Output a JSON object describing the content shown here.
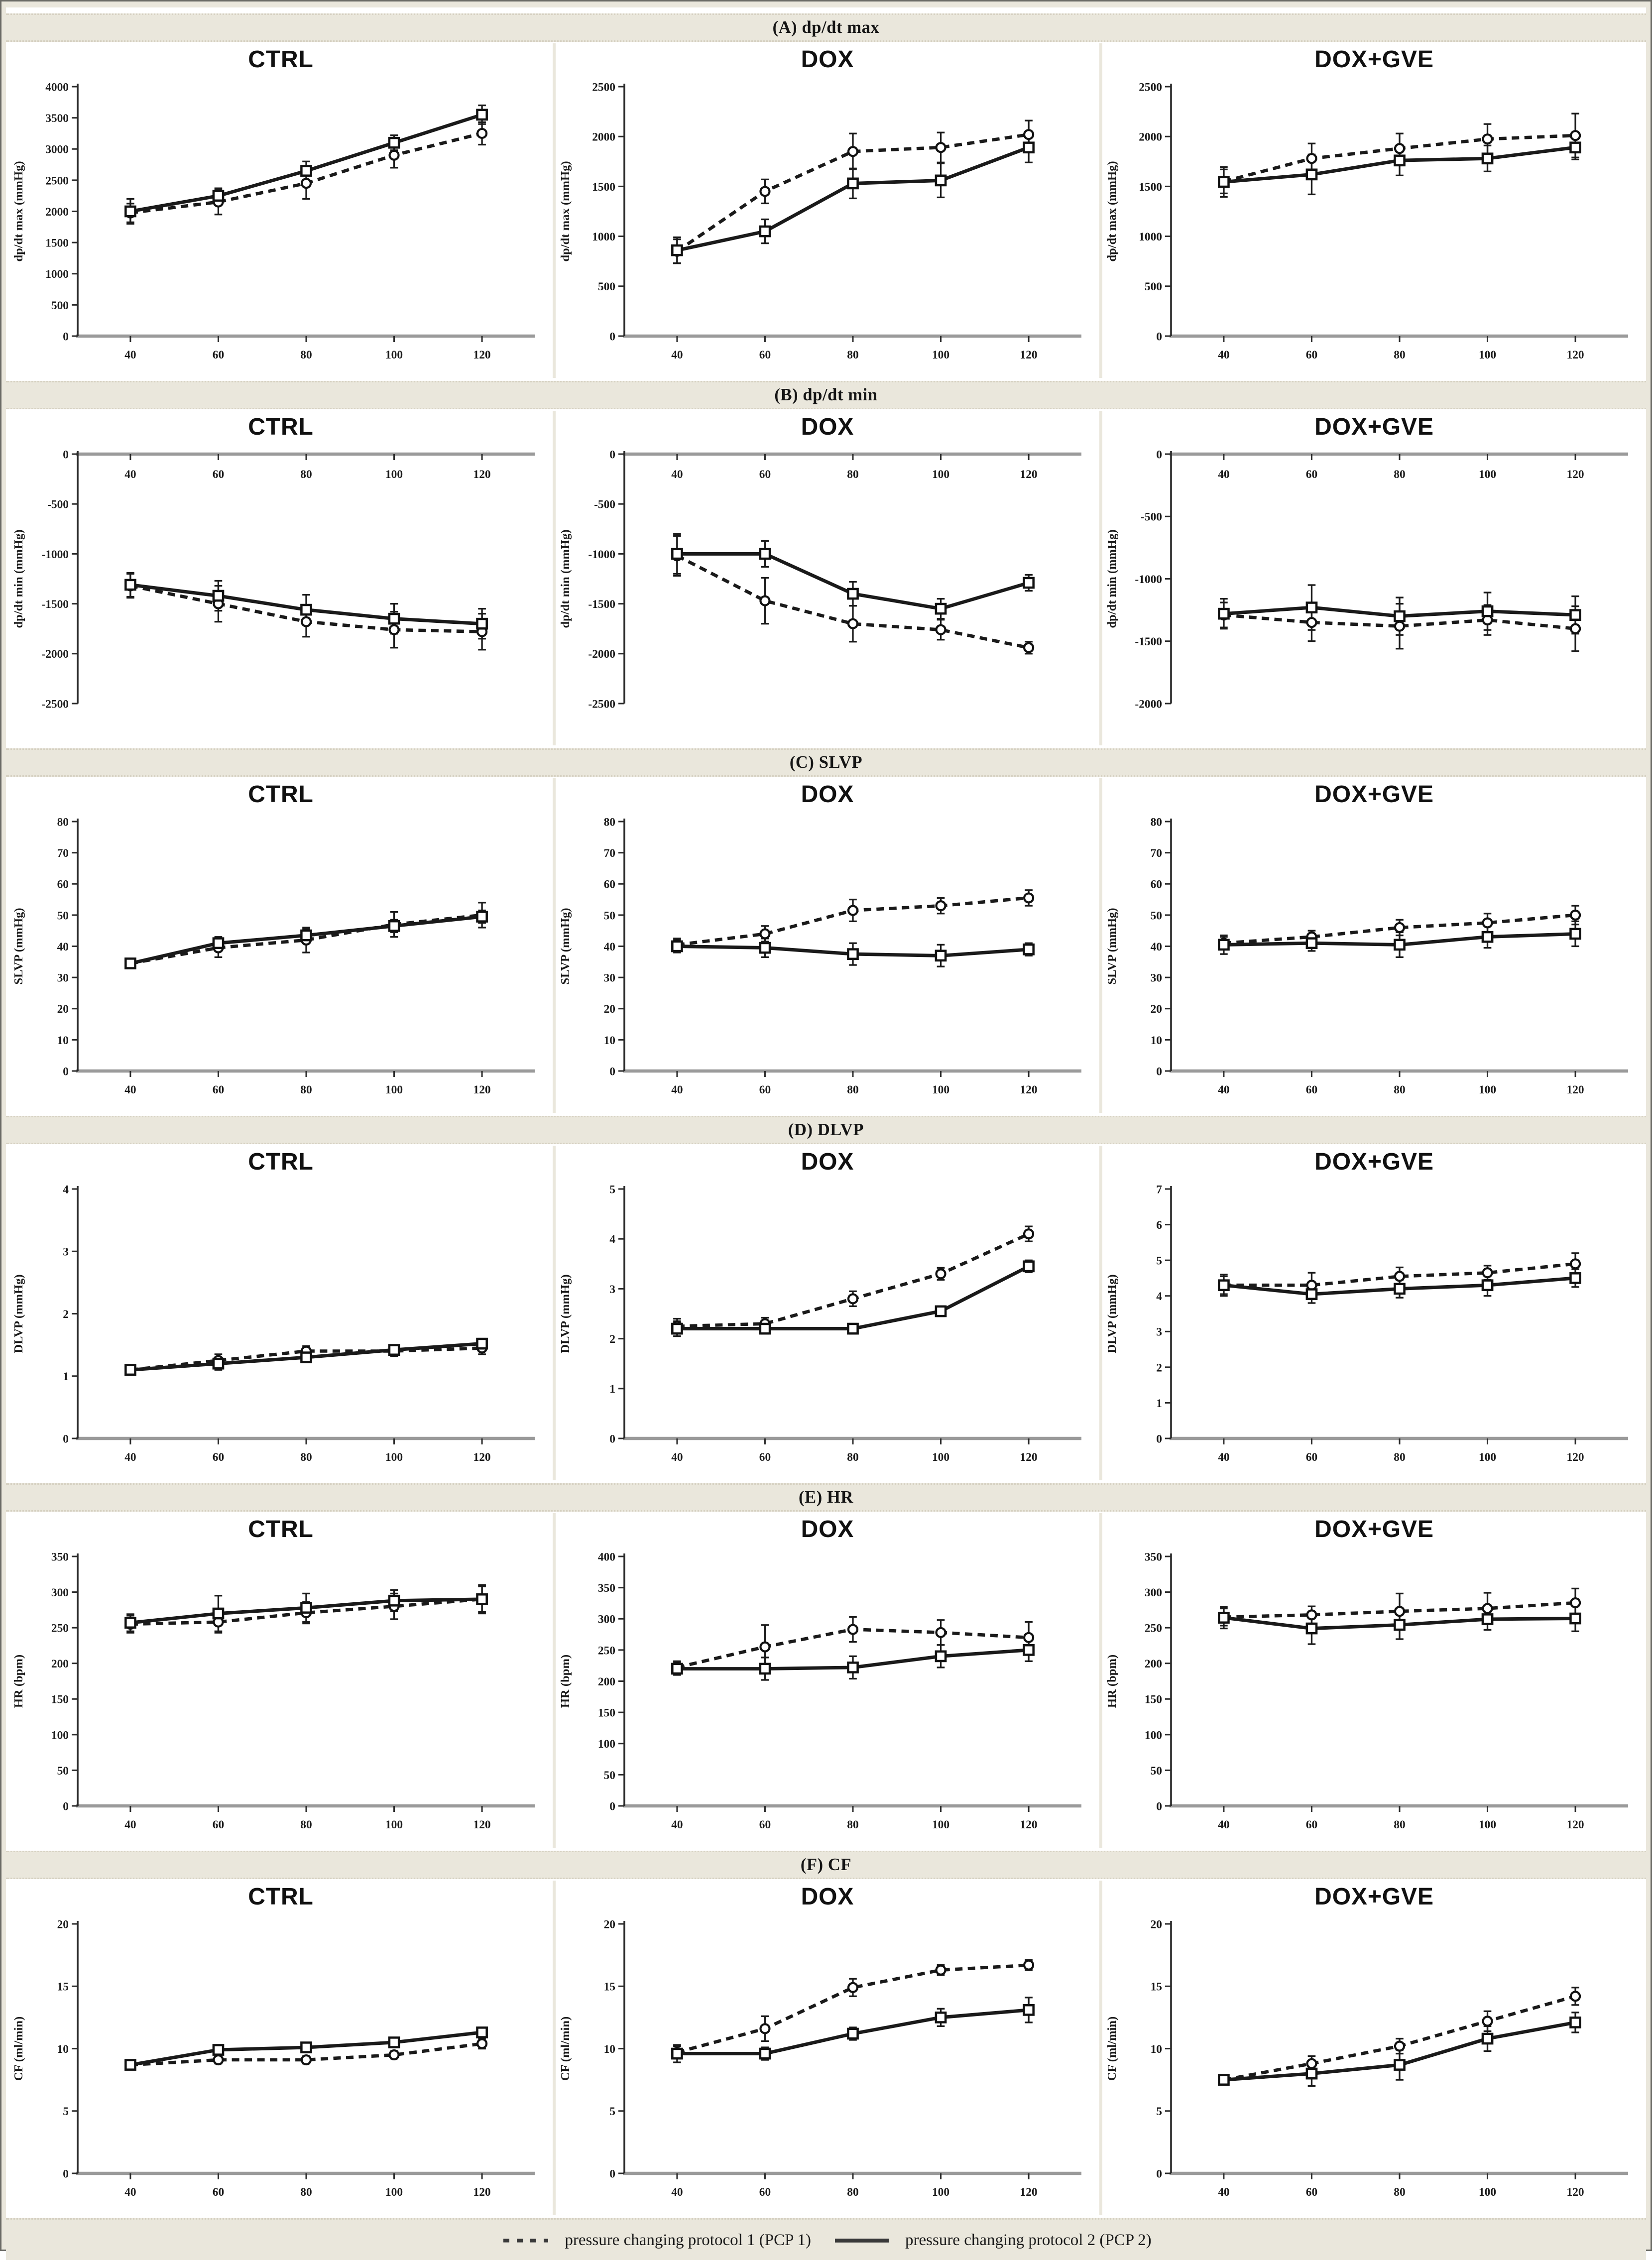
{
  "colors": {
    "band_bg": "#eae7dc",
    "panel_bg": "#ffffff",
    "line": "#1a1a1a",
    "baseline": "#9a9a9a",
    "axis": "#2b2b2b",
    "text": "#1a1a1a"
  },
  "legend": {
    "items": [
      {
        "symbol": "dashed",
        "label": "pressure changing protocol 1 (PCP 1)"
      },
      {
        "symbol": "solid",
        "label": "pressure changing protocol 2 (PCP 2)"
      }
    ]
  },
  "chart_data": {
    "type": "line",
    "x": [
      40,
      60,
      80,
      100,
      120
    ],
    "series_names": {
      "pcp1": "pressure changing protocol 1 (PCP 1)",
      "pcp2": "pressure changing protocol 2 (PCP 2)"
    },
    "style_note": "pcp1 dashed line with open circle markers; pcp2 solid line with open square markers; vertical error bars with caps",
    "sections": [
      {
        "id": "A",
        "title": "(A) dp/dt max",
        "ylabel": "dp/dt max (mmHg)",
        "charts": [
          {
            "group": "CTRL",
            "ylim": [
              0,
              4000
            ],
            "ystep": 500,
            "pcp1": [
              1975,
              2150,
              2450,
              2900,
              3250
            ],
            "err1": [
              150,
              200,
              250,
              200,
              180
            ],
            "pcp2": [
              2000,
              2250,
              2650,
              3100,
              3550
            ],
            "err2": [
              200,
              120,
              150,
              120,
              150
            ]
          },
          {
            "group": "DOX",
            "ylim": [
              0,
              2500
            ],
            "ystep": 500,
            "pcp1": [
              850,
              1450,
              1850,
              1890,
              2020
            ],
            "err1": [
              120,
              120,
              180,
              150,
              140
            ],
            "pcp2": [
              860,
              1050,
              1530,
              1560,
              1890
            ],
            "err2": [
              130,
              120,
              150,
              170,
              150
            ]
          },
          {
            "group": "DOX+GVE",
            "ylim": [
              0,
              2500
            ],
            "ystep": 500,
            "pcp1": [
              1550,
              1780,
              1880,
              1975,
              2010
            ],
            "err1": [
              120,
              150,
              150,
              150,
              220
            ],
            "pcp2": [
              1545,
              1620,
              1760,
              1780,
              1890
            ],
            "err2": [
              150,
              200,
              150,
              130,
              120
            ]
          }
        ]
      },
      {
        "id": "B",
        "title": "(B) dp/dt min",
        "ylabel": "dp/dt min (mmHg)",
        "charts": [
          {
            "group": "CTRL",
            "ylim": [
              -2500,
              0
            ],
            "ystep": 500,
            "pcp1": [
              -1320,
              -1500,
              -1680,
              -1760,
              -1780
            ],
            "err1": [
              120,
              180,
              150,
              180,
              180
            ],
            "pcp2": [
              -1310,
              -1420,
              -1560,
              -1650,
              -1700
            ],
            "err2": [
              120,
              150,
              150,
              150,
              150
            ]
          },
          {
            "group": "DOX",
            "ylim": [
              -2500,
              0
            ],
            "ystep": 500,
            "pcp1": [
              -1020,
              -1470,
              -1700,
              -1760,
              -1940
            ],
            "err1": [
              200,
              230,
              180,
              100,
              60
            ],
            "pcp2": [
              -1000,
              -1000,
              -1400,
              -1550,
              -1290
            ],
            "err2": [
              200,
              130,
              120,
              100,
              80
            ]
          },
          {
            "group": "DOX+GVE",
            "ylim": [
              -2000,
              0
            ],
            "ystep": 500,
            "pcp1": [
              -1290,
              -1350,
              -1380,
              -1330,
              -1400
            ],
            "err1": [
              100,
              150,
              180,
              120,
              180
            ],
            "pcp2": [
              -1280,
              -1230,
              -1300,
              -1260,
              -1290
            ],
            "err2": [
              120,
              180,
              150,
              150,
              150
            ]
          }
        ]
      },
      {
        "id": "C",
        "title": "(C) SLVP",
        "ylabel": "SLVP (mmHg)",
        "charts": [
          {
            "group": "CTRL",
            "ylim": [
              0,
              80
            ],
            "ystep": 10,
            "pcp1": [
              34.5,
              39.5,
              42,
              47,
              50
            ],
            "err1": [
              1.5,
              3,
              4,
              4,
              4
            ],
            "pcp2": [
              34.5,
              41,
              43.5,
              46.5,
              49.5
            ],
            "err2": [
              1.5,
              2,
              2,
              2,
              2
            ]
          },
          {
            "group": "DOX",
            "ylim": [
              0,
              80
            ],
            "ystep": 10,
            "pcp1": [
              40.5,
              44,
              51.5,
              53,
              55.5
            ],
            "err1": [
              2,
              2.5,
              3.5,
              2.5,
              2.5
            ],
            "pcp2": [
              40,
              39.5,
              37.5,
              37,
              39
            ],
            "err2": [
              2,
              3,
              3.5,
              3.5,
              2
            ]
          },
          {
            "group": "DOX+GVE",
            "ylim": [
              0,
              80
            ],
            "ystep": 10,
            "pcp1": [
              41,
              43,
              46,
              47.5,
              50
            ],
            "err1": [
              2,
              2,
              2.5,
              3,
              3
            ],
            "pcp2": [
              40.5,
              41,
              40.5,
              43,
              44
            ],
            "err2": [
              3,
              2.5,
              4,
              3.5,
              4
            ]
          }
        ]
      },
      {
        "id": "D",
        "title": "(D) DLVP",
        "ylabel": "DLVP (mmHg)",
        "charts": [
          {
            "group": "CTRL",
            "ylim": [
              0,
              4
            ],
            "ystep": 1,
            "pcp1": [
              1.1,
              1.25,
              1.4,
              1.4,
              1.45
            ],
            "err1": [
              0.05,
              0.1,
              0.08,
              0.08,
              0.1
            ],
            "pcp2": [
              1.1,
              1.2,
              1.3,
              1.42,
              1.52
            ],
            "err2": [
              0.05,
              0.1,
              0.08,
              0.06,
              0.08
            ]
          },
          {
            "group": "DOX",
            "ylim": [
              0,
              5
            ],
            "ystep": 1,
            "pcp1": [
              2.25,
              2.3,
              2.8,
              3.3,
              4.1
            ],
            "err1": [
              0.15,
              0.12,
              0.15,
              0.12,
              0.15
            ],
            "pcp2": [
              2.2,
              2.2,
              2.2,
              2.55,
              3.45
            ],
            "err2": [
              0.15,
              0.1,
              0.1,
              0.1,
              0.12
            ]
          },
          {
            "group": "DOX+GVE",
            "ylim": [
              0,
              7
            ],
            "ystep": 1,
            "pcp1": [
              4.3,
              4.3,
              4.55,
              4.65,
              4.9
            ],
            "err1": [
              0.25,
              0.35,
              0.25,
              0.2,
              0.3
            ],
            "pcp2": [
              4.3,
              4.05,
              4.2,
              4.3,
              4.5
            ],
            "err2": [
              0.3,
              0.25,
              0.25,
              0.3,
              0.25
            ]
          }
        ]
      },
      {
        "id": "E",
        "title": "(E) HR",
        "ylabel": "HR (bpm)",
        "charts": [
          {
            "group": "CTRL",
            "ylim": [
              0,
              350
            ],
            "ystep": 50,
            "pcp1": [
              255,
              258,
              271,
              280,
              290
            ],
            "err1": [
              12,
              15,
              15,
              18,
              18
            ],
            "pcp2": [
              257,
              270,
              278,
              288,
              290
            ],
            "err2": [
              12,
              25,
              20,
              15,
              20
            ]
          },
          {
            "group": "DOX",
            "ylim": [
              0,
              400
            ],
            "ystep": 50,
            "pcp1": [
              222,
              255,
              283,
              278,
              270
            ],
            "err1": [
              10,
              35,
              20,
              20,
              25
            ],
            "pcp2": [
              220,
              220,
              222,
              240,
              250
            ],
            "err2": [
              10,
              18,
              18,
              18,
              18
            ]
          },
          {
            "group": "DOX+GVE",
            "ylim": [
              0,
              350
            ],
            "ystep": 50,
            "pcp1": [
              265,
              268,
              273,
              277,
              285
            ],
            "err1": [
              12,
              12,
              25,
              22,
              20
            ],
            "pcp2": [
              264,
              249,
              254,
              262,
              263
            ],
            "err2": [
              15,
              22,
              20,
              15,
              18
            ]
          }
        ]
      },
      {
        "id": "F",
        "title": "(F) CF",
        "ylabel": "CF (ml/min)",
        "charts": [
          {
            "group": "CTRL",
            "ylim": [
              0,
              20
            ],
            "ystep": 5,
            "pcp1": [
              8.7,
              9.1,
              9.1,
              9.5,
              10.4
            ],
            "err1": [
              0.3,
              0.3,
              0.3,
              0.3,
              0.4
            ],
            "pcp2": [
              8.7,
              9.9,
              10.1,
              10.5,
              11.3
            ],
            "err2": [
              0.3,
              0.3,
              0.3,
              0.3,
              0.4
            ]
          },
          {
            "group": "DOX",
            "ylim": [
              0,
              20
            ],
            "ystep": 5,
            "pcp1": [
              9.7,
              11.6,
              14.9,
              16.3,
              16.7
            ],
            "err1": [
              0.5,
              1.0,
              0.7,
              0.4,
              0.4
            ],
            "pcp2": [
              9.6,
              9.6,
              11.2,
              12.5,
              13.1
            ],
            "err2": [
              0.7,
              0.5,
              0.5,
              0.7,
              1.0
            ]
          },
          {
            "group": "DOX+GVE",
            "ylim": [
              0,
              20
            ],
            "ystep": 5,
            "pcp1": [
              7.5,
              8.8,
              10.2,
              12.2,
              14.2
            ],
            "err1": [
              0.2,
              0.6,
              0.6,
              0.8,
              0.7
            ],
            "pcp2": [
              7.5,
              8.0,
              8.7,
              10.8,
              12.1
            ],
            "err2": [
              0.2,
              1.0,
              1.2,
              1.0,
              0.8
            ]
          }
        ]
      }
    ]
  }
}
